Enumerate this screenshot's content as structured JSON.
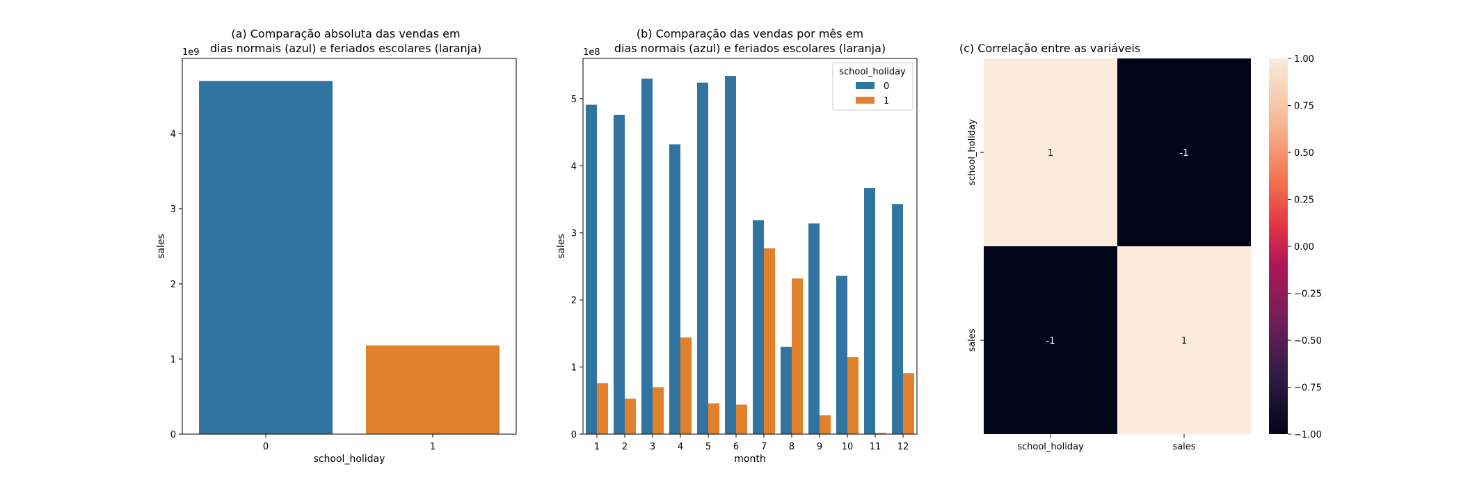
{
  "colors": {
    "series_0": "#3274a1",
    "series_1": "#e1812c",
    "axis": "#000000",
    "legend_border": "#cccccc",
    "heatmap_high": "#faebdd",
    "heatmap_low": "#03051a"
  },
  "chart_data": [
    {
      "type": "bar",
      "title": "(a) Comparação absoluta das vendas em\ndias normais (azul) e feriados escolares (laranja)",
      "xlabel": "school_holiday",
      "ylabel": "sales",
      "scale_label": "1e9",
      "categories": [
        "0",
        "1"
      ],
      "values": [
        4700000000,
        1180000000
      ],
      "ylim": [
        0,
        5000000000
      ],
      "yticks": [
        0,
        1,
        2,
        3,
        4
      ],
      "grid": false
    },
    {
      "type": "bar",
      "title": "(b) Comparação das vendas por mês em\ndias normais (azul) e feriados escolares (laranja)",
      "xlabel": "month",
      "ylabel": "sales",
      "scale_label": "1e8",
      "categories": [
        "1",
        "2",
        "3",
        "4",
        "5",
        "6",
        "7",
        "8",
        "9",
        "10",
        "11",
        "12"
      ],
      "series": [
        {
          "name": "0",
          "values": [
            491000000,
            476000000,
            530000000,
            432000000,
            524000000,
            534000000,
            319000000,
            130000000,
            314000000,
            236000000,
            367000000,
            343000000
          ]
        },
        {
          "name": "1",
          "values": [
            76000000,
            53000000,
            70000000,
            144000000,
            46000000,
            44000000,
            277000000,
            232000000,
            28000000,
            115000000,
            2000000,
            91000000
          ]
        }
      ],
      "legend_title": "school_holiday",
      "legend_position": "upper right",
      "ylim": [
        0,
        560000000
      ],
      "yticks": [
        0,
        1,
        2,
        3,
        4,
        5
      ],
      "grid": false
    },
    {
      "type": "heatmap",
      "title": "(c) Correlação entre as variáveis",
      "rows": [
        "school_holiday",
        "sales"
      ],
      "columns": [
        "school_holiday",
        "sales"
      ],
      "values": [
        [
          1,
          -1
        ],
        [
          -1,
          1
        ]
      ],
      "annotations": [
        [
          "1",
          "-1"
        ],
        [
          "-1",
          "1"
        ]
      ],
      "colorbar_range": [
        -1,
        1
      ],
      "colorbar_ticks": [
        "1.00",
        "0.75",
        "0.50",
        "0.25",
        "0.00",
        "−0.25",
        "−0.50",
        "−0.75",
        "−1.00"
      ]
    }
  ]
}
